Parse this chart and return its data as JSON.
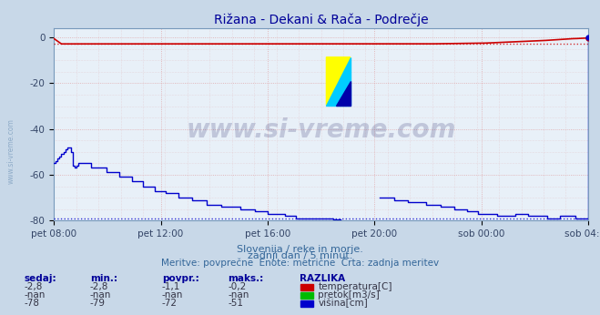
{
  "title": "Rižana - Dekani & Rača - Podrečje",
  "title_color": "#000099",
  "background_color": "#c8d8e8",
  "plot_bg_color": "#e8f0f8",
  "grid_color": "#dd8888",
  "grid_color2": "#aabbdd",
  "xlabel_ticks": [
    "pet 08:00",
    "pet 12:00",
    "pet 16:00",
    "pet 20:00",
    "sob 00:00",
    "sob 04:00"
  ],
  "ylim": [
    -80,
    4
  ],
  "yticks": [
    0,
    -20,
    -40,
    -60,
    -80
  ],
  "temp_color": "#cc0000",
  "flow_color": "#00bb00",
  "height_color": "#0000cc",
  "watermark": "www.si-vreme.com",
  "subtitle1": "Slovenija / reke in morje.",
  "subtitle2": "zadnji dan / 5 minut.",
  "subtitle3": "Meritve: povprečne  Enote: metrične  Črta: zadnja meritev",
  "legend_headers": [
    "sedaj:",
    "min.:",
    "povpr.:",
    "maks.:",
    "RAZLIKA"
  ],
  "legend_row1": [
    "-2,8",
    "-2,8",
    "-1,1",
    "-0,2",
    "temperatura[C]"
  ],
  "legend_row2": [
    "-nan",
    "-nan",
    "-nan",
    "-nan",
    "pretok[m3/s]"
  ],
  "legend_row3": [
    "-78",
    "-79",
    "-72",
    "-51",
    "višina[cm]"
  ],
  "n_points": 288,
  "logo_colors": [
    "#ffff00",
    "#00ccff",
    "#0000aa"
  ],
  "logo_ratio": [
    0.5,
    0.5
  ]
}
